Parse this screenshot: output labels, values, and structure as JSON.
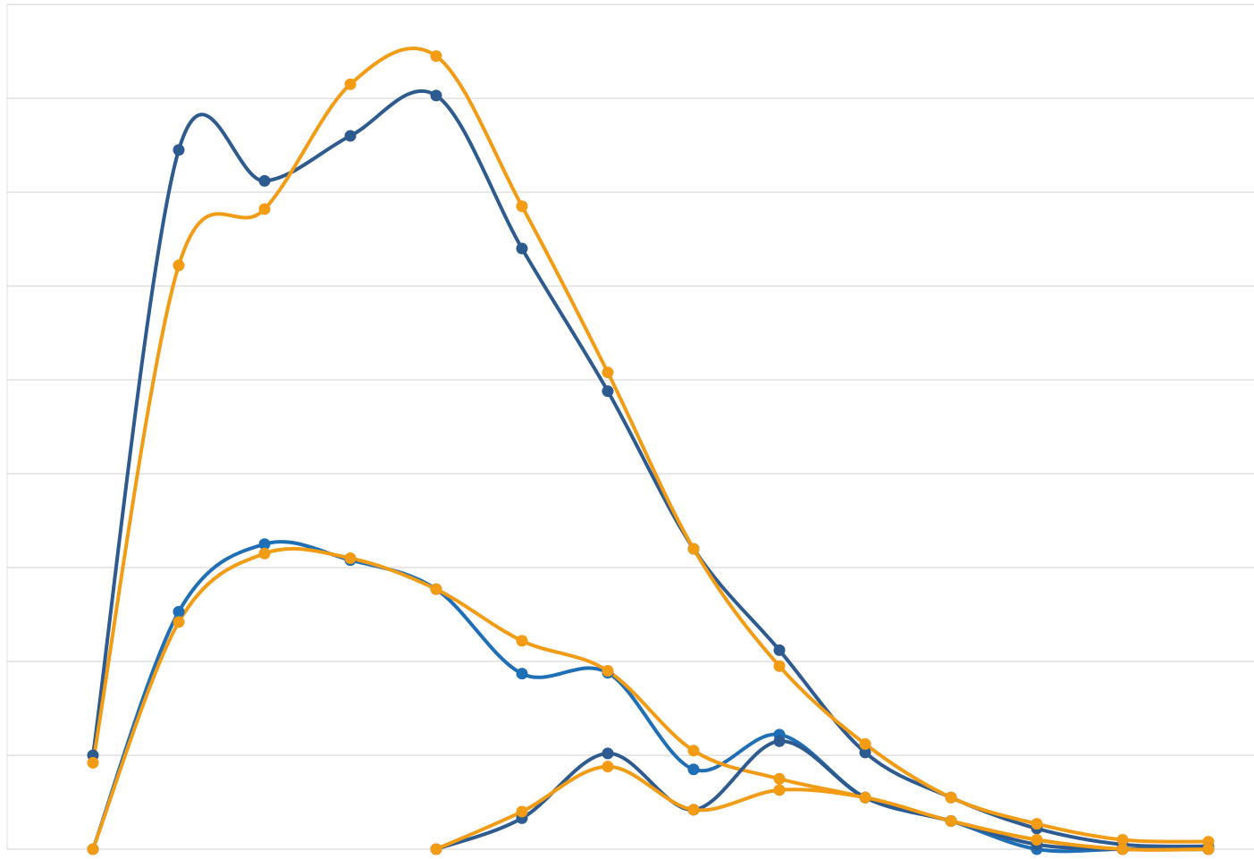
{
  "chart_data": {
    "type": "line",
    "smooth": true,
    "markers": true,
    "grid": true,
    "legend": "none",
    "ylim": [
      0,
      9
    ],
    "x": [
      0,
      1,
      2,
      3,
      4,
      5,
      6,
      7,
      8,
      9,
      10,
      11,
      12,
      13
    ],
    "series": [
      {
        "color": "#2e5b8f",
        "values": [
          1.0,
          7.45,
          7.12,
          7.6,
          8.03,
          6.4,
          4.88,
          3.2,
          2.12,
          1.03,
          0.55,
          0.22,
          0.05,
          0.03
        ]
      },
      {
        "color": "#f29b14",
        "values": [
          0.92,
          6.22,
          6.82,
          8.15,
          8.45,
          6.85,
          5.08,
          3.2,
          1.95,
          1.12,
          0.55,
          0.27,
          0.1,
          0.08
        ]
      },
      {
        "color": "#1e6fb5",
        "values": [
          0.0,
          2.53,
          3.25,
          3.08,
          2.77,
          1.87,
          1.88,
          0.85,
          1.22,
          0.55,
          0.3,
          0.0,
          0.0,
          0.0
        ]
      },
      {
        "color": "#f29b14",
        "values": [
          0.0,
          2.42,
          3.15,
          3.1,
          2.77,
          2.22,
          1.9,
          1.05,
          0.75,
          0.55,
          0.3,
          0.1,
          0.0,
          0.0
        ]
      },
      {
        "color": "#2e5b8f",
        "values": [
          null,
          null,
          null,
          null,
          0.0,
          0.33,
          1.02,
          0.42,
          1.15,
          0.55,
          0.3,
          0.05,
          0.0,
          0.0
        ]
      },
      {
        "color": "#f29b14",
        "values": [
          null,
          null,
          null,
          null,
          0.0,
          0.4,
          0.88,
          0.42,
          0.63,
          0.55,
          0.3,
          0.1,
          0.0,
          0.0
        ]
      }
    ]
  }
}
